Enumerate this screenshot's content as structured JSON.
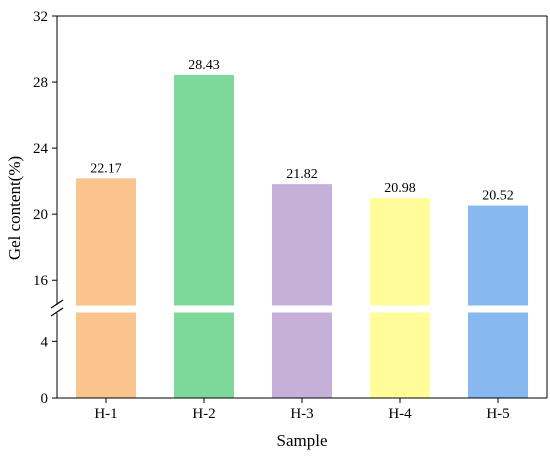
{
  "chart_data": {
    "type": "bar",
    "xlabel": "Sample",
    "ylabel": "Gel content(%)",
    "categories": [
      "H-1",
      "H-2",
      "H-3",
      "H-4",
      "H-5"
    ],
    "values": [
      22.17,
      28.43,
      21.82,
      20.98,
      20.52
    ],
    "value_labels": [
      "22.17",
      "28.43",
      "21.82",
      "20.98",
      "20.52"
    ],
    "colors": [
      "#FAC48E",
      "#7ED899",
      "#C6B0D9",
      "#FFFC99",
      "#88B8F0"
    ],
    "y_axis_break": {
      "lower_range": [
        0,
        6
      ],
      "upper_range": [
        14.5,
        32
      ]
    },
    "yticks_lower": [
      0,
      4
    ],
    "yticks_upper": [
      16,
      20,
      24,
      28,
      32
    ],
    "ytick_labels_lower": [
      "0",
      "4"
    ],
    "ytick_labels_upper": [
      "16",
      "20",
      "24",
      "28",
      "32"
    ],
    "grid": false,
    "legend": "none"
  }
}
